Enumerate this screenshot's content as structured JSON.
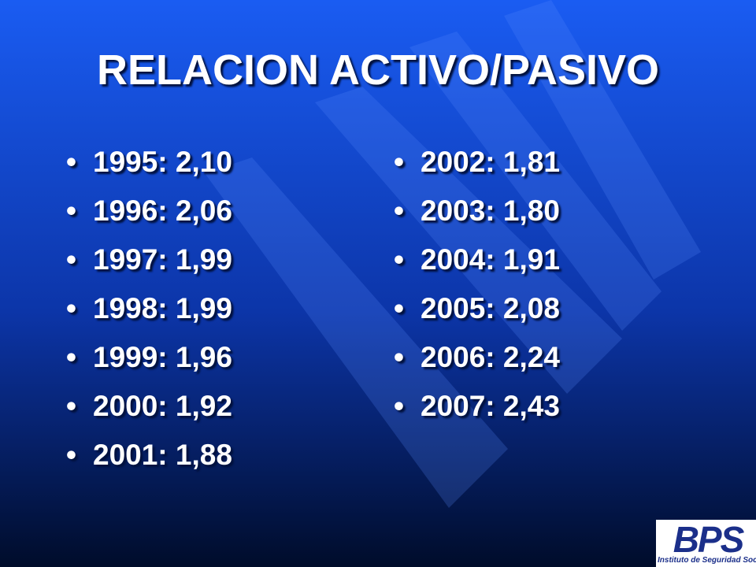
{
  "header": {
    "title": "RELACION ACTIVO/PASIVO"
  },
  "columns": [
    [
      "1995: 2,10",
      "1996: 2,06",
      "1997: 1,99",
      "1998: 1,99",
      "1999: 1,96",
      "2000: 1,92",
      "2001: 1,88"
    ],
    [
      "2002: 1,81",
      "2003: 1,80",
      "2004: 1,91",
      "2005: 2,08",
      "2006: 2,24",
      "2007: 2,43"
    ]
  ],
  "logo": {
    "name": "BPS",
    "subtitle": "Instituto de Seguridad Social"
  }
}
